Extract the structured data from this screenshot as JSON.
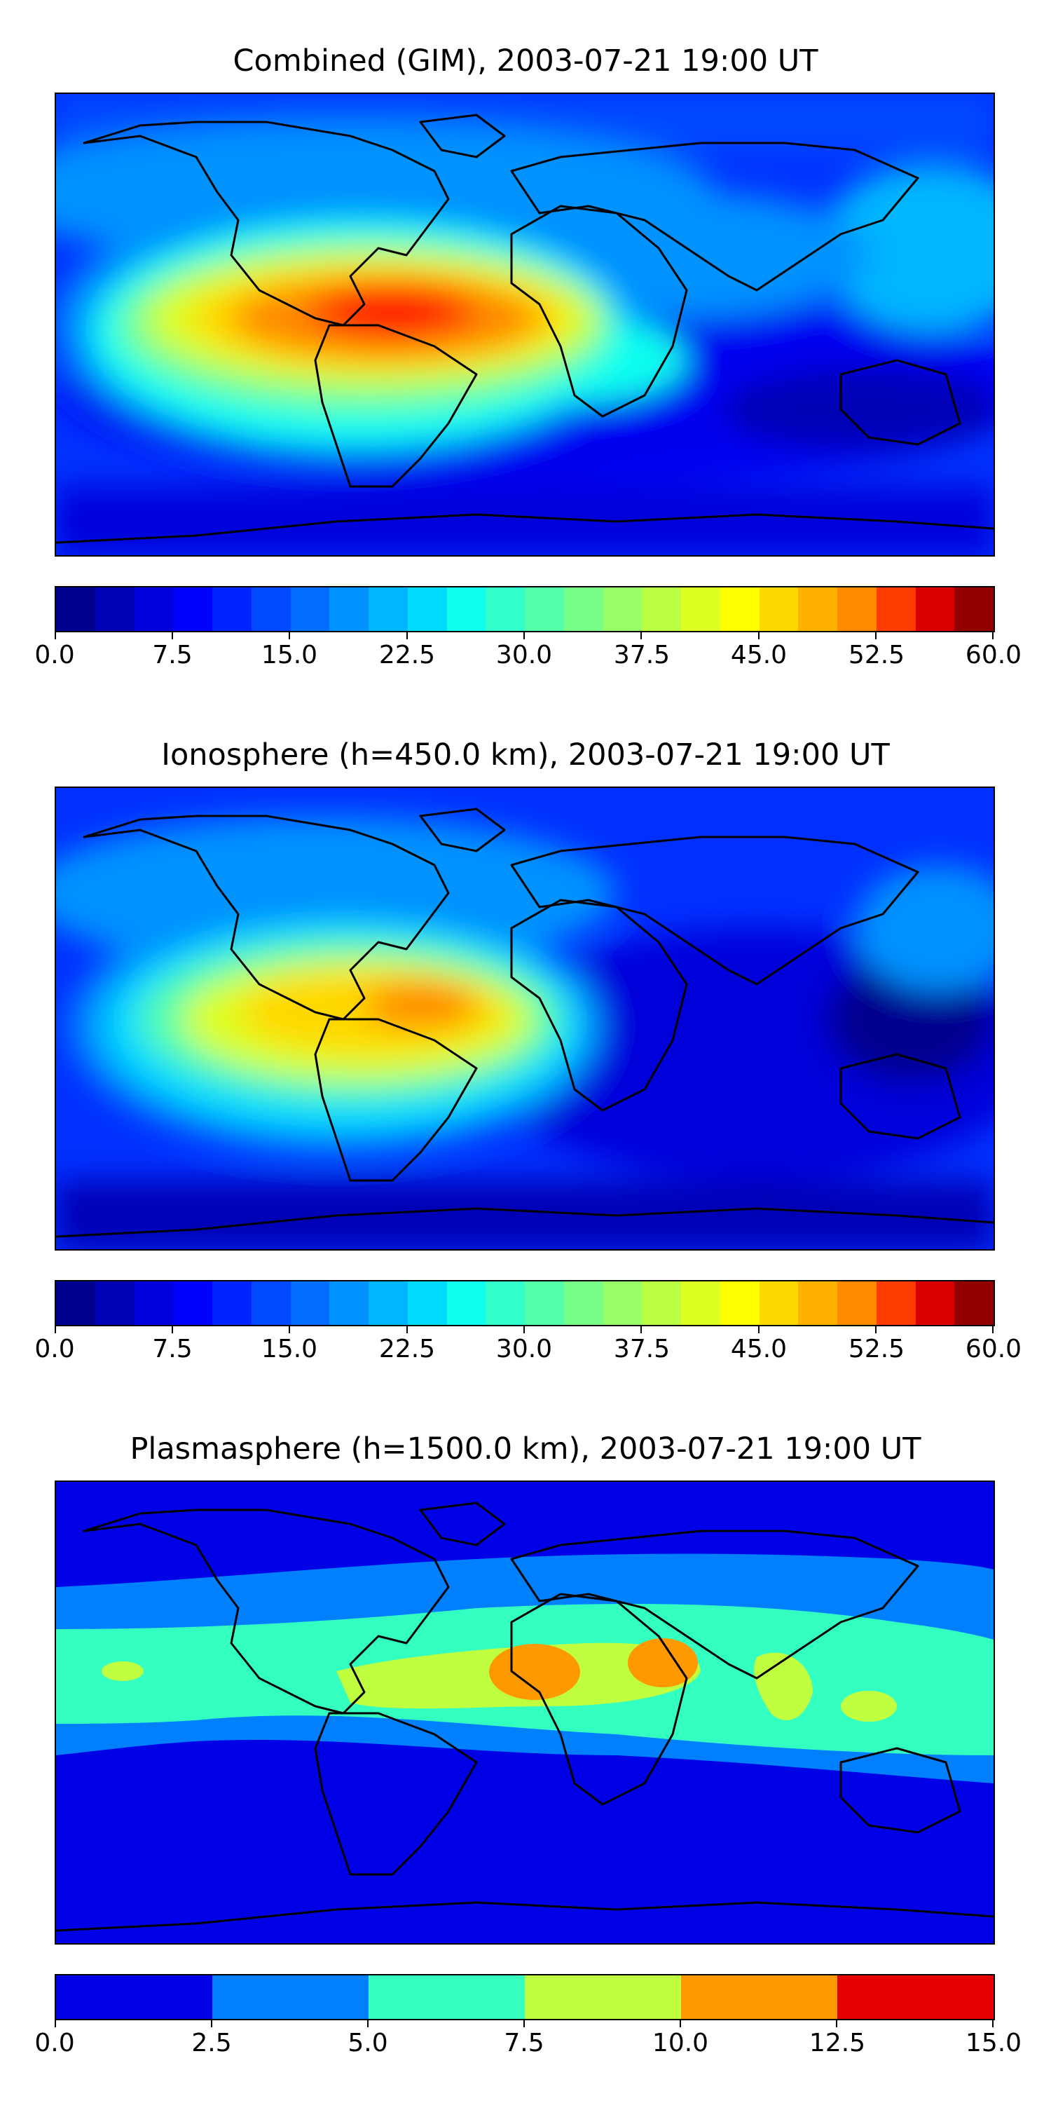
{
  "panels": [
    {
      "title": "Combined (GIM), 2003-07-21 19:00 UT",
      "colorbar": {
        "min": 0,
        "max": 60,
        "levels": 24,
        "tick_labels": [
          "0.0",
          "7.5",
          "15.0",
          "22.5",
          "30.0",
          "37.5",
          "45.0",
          "52.5",
          "60.0"
        ],
        "colors": [
          "#00008f",
          "#0000b5",
          "#0000da",
          "#0000ff",
          "#0024ff",
          "#0049ff",
          "#006dff",
          "#0092ff",
          "#00b6ff",
          "#00dbff",
          "#10ffef",
          "#33ffcc",
          "#55ffaa",
          "#77ff88",
          "#99ff66",
          "#bbff44",
          "#ddff22",
          "#ffff00",
          "#ffd800",
          "#ffb100",
          "#ff8a00",
          "#ff6300",
          "#ff3c00",
          "#ff1400",
          "#db0000",
          "#b60000",
          "#920000"
        ]
      }
    },
    {
      "title": "Ionosphere  (h=450.0 km), 2003-07-21 19:00 UT",
      "colorbar": {
        "min": 0,
        "max": 60,
        "levels": 24,
        "tick_labels": [
          "0.0",
          "7.5",
          "15.0",
          "22.5",
          "30.0",
          "37.5",
          "45.0",
          "52.5",
          "60.0"
        ],
        "colors": [
          "#00008f",
          "#0000b5",
          "#0000da",
          "#0000ff",
          "#0024ff",
          "#0049ff",
          "#006dff",
          "#0092ff",
          "#00b6ff",
          "#00dbff",
          "#10ffef",
          "#33ffcc",
          "#55ffaa",
          "#77ff88",
          "#99ff66",
          "#bbff44",
          "#ddff22",
          "#ffff00",
          "#ffd800",
          "#ffb100",
          "#ff8a00",
          "#ff6300",
          "#ff3c00",
          "#ff1400",
          "#db0000",
          "#b60000",
          "#920000"
        ]
      }
    },
    {
      "title": "Plasmasphere (h=1500.0 km), 2003-07-21 19:00 UT",
      "colorbar": {
        "min": 0,
        "max": 15,
        "levels": 6,
        "tick_labels": [
          "0.0",
          "2.5",
          "5.0",
          "7.5",
          "10.0",
          "12.5",
          "15.0"
        ],
        "colors": [
          "#0000e6",
          "#0080ff",
          "#33ffc0",
          "#c0ff40",
          "#ff9900",
          "#e60000"
        ]
      }
    }
  ],
  "map_colors": {
    "ocean_low": "#0022ee",
    "coast": "#000000"
  }
}
